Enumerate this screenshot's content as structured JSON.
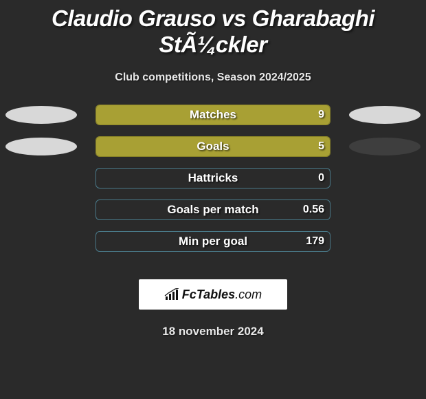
{
  "title": "Claudio Grauso vs Gharabaghi StÃ¼ckler",
  "subtitle": "Club competitions, Season 2024/2025",
  "date": "18 november 2024",
  "colors": {
    "background": "#2a2a2a",
    "bar_fill": "#a8a034",
    "bar_border_olive": "#8a8428",
    "bar_border_blue": "#4a7a8a",
    "ellipse_light": "#d8d8d8",
    "ellipse_dark": "#3e3e3e",
    "text": "#ffffff"
  },
  "logo": {
    "brand_pre": "Fc",
    "brand_main": "Tables",
    "brand_suffix": ".com"
  },
  "stats": [
    {
      "label": "Matches",
      "value": "9",
      "fill_pct": 100,
      "border": "olive",
      "left_ellipse": "light",
      "right_ellipse": "light"
    },
    {
      "label": "Goals",
      "value": "5",
      "fill_pct": 100,
      "border": "olive",
      "left_ellipse": "light",
      "right_ellipse": "dark"
    },
    {
      "label": "Hattricks",
      "value": "0",
      "fill_pct": 0,
      "border": "blue",
      "left_ellipse": null,
      "right_ellipse": null
    },
    {
      "label": "Goals per match",
      "value": "0.56",
      "fill_pct": 0,
      "border": "blue",
      "left_ellipse": null,
      "right_ellipse": null
    },
    {
      "label": "Min per goal",
      "value": "179",
      "fill_pct": 0,
      "border": "blue",
      "left_ellipse": null,
      "right_ellipse": null
    }
  ]
}
